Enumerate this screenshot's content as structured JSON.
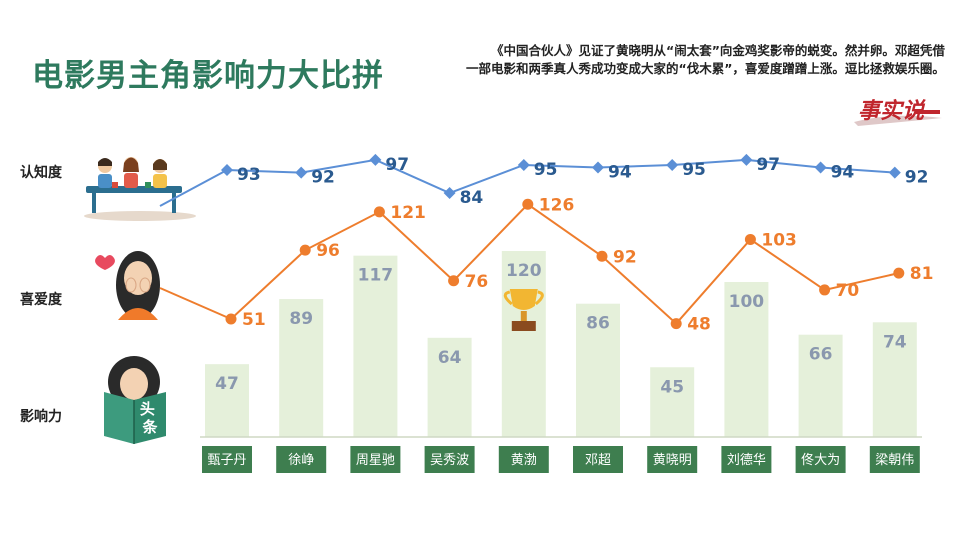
{
  "title": "电影男主角影响力大比拼",
  "intro": "《中国合伙人》见证了黄晓明从“闹太套”向金鸡奖影帝的蜕变。然并卵。邓超凭借一部电影和两季真人秀成功变成大家的“伐木累”，喜爱度蹭蹭上涨。逗比拯救娱乐圈。",
  "logo_text": "事实说",
  "headline_icon_text": "头条",
  "colors": {
    "title": "#2e7a5e",
    "awareness": "#5b8fd6",
    "awareness_label": "#2a5a8f",
    "likeability": "#ee7d2d",
    "bar": "#e5f0da",
    "name_box": "#3e7e4f",
    "bar_label": "#8a98ae"
  },
  "chart_data": {
    "type": "bar",
    "row_labels": {
      "awareness": "认知度",
      "likeability": "喜爱度",
      "influence": "影响力"
    },
    "categories": [
      "甄子丹",
      "徐峥",
      "周星驰",
      "吴秀波",
      "黄渤",
      "邓超",
      "黄晓明",
      "刘德华",
      "佟大为",
      "梁朝伟"
    ],
    "series": [
      {
        "key": "awareness",
        "name": "认知度",
        "type": "line",
        "values": [
          93,
          92,
          97,
          84,
          95,
          94,
          95,
          97,
          94,
          92
        ]
      },
      {
        "key": "likeability",
        "name": "喜爱度",
        "type": "line",
        "values": [
          51,
          96,
          121,
          76,
          126,
          92,
          48,
          103,
          70,
          81
        ]
      },
      {
        "key": "influence",
        "name": "影响力",
        "type": "bar",
        "values": [
          47,
          89,
          117,
          64,
          120,
          86,
          45,
          100,
          66,
          74
        ]
      }
    ],
    "highlight": {
      "category": "黄渤",
      "icon": "trophy-icon"
    },
    "grid": false,
    "legend": "left"
  }
}
